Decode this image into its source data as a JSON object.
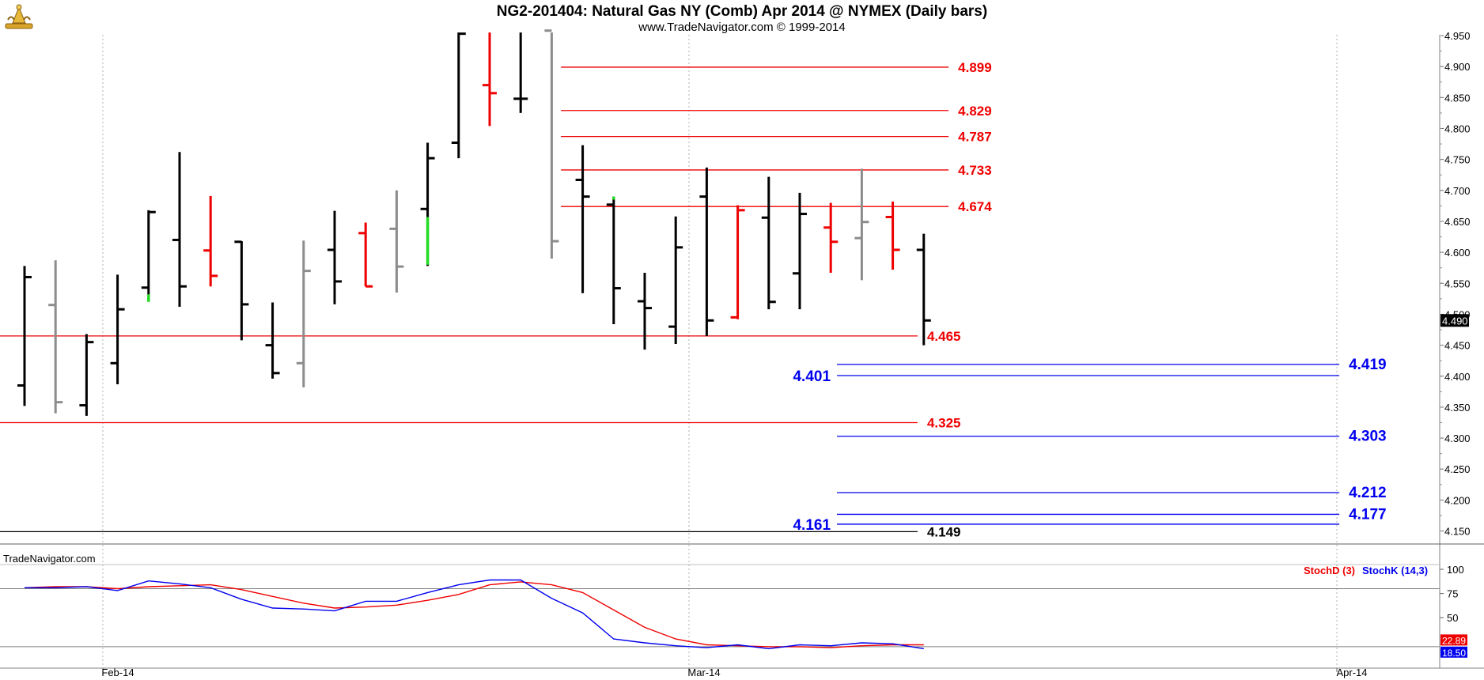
{
  "header": {
    "title": "NG2-201404:  Natural Gas NY (Comb) Apr 2014 @ NYMEX  (Daily bars)",
    "subtitle": "www.TradeNavigator.com © 1999-2014"
  },
  "chart_data": [
    {
      "type": "ohlc",
      "xlabel": "",
      "ylabel": "",
      "ylim": [
        4.13,
        4.955
      ],
      "x_ticks": [
        "Feb-14",
        "Mar-14",
        "Apr-14"
      ],
      "y_ticks": [
        "4.950",
        "4.900",
        "4.850",
        "4.800",
        "4.750",
        "4.700",
        "4.650",
        "4.600",
        "4.550",
        "4.500",
        "4.450",
        "4.400",
        "4.350",
        "4.300",
        "4.250",
        "4.200",
        "4.150"
      ],
      "last_price": "4.490",
      "bar_colors": {
        "black": "#000000",
        "gray": "#8c8c8c",
        "red": "#ee0000",
        "green": "#22dd22"
      },
      "bars": [
        {
          "o": 4.385,
          "h": 4.578,
          "l": 4.352,
          "c": 4.56,
          "color": "black"
        },
        {
          "o": 4.515,
          "h": 4.587,
          "l": 4.34,
          "c": 4.358,
          "color": "gray"
        },
        {
          "o": 4.353,
          "h": 4.468,
          "l": 4.336,
          "c": 4.455,
          "color": "black"
        },
        {
          "o": 4.421,
          "h": 4.564,
          "l": 4.387,
          "c": 4.508,
          "color": "black"
        },
        {
          "o": 4.543,
          "h": 4.668,
          "l": 4.532,
          "c": 4.665,
          "color": "black"
        },
        {
          "o": 4.62,
          "h": 4.762,
          "l": 4.512,
          "c": 4.545,
          "color": "black"
        },
        {
          "o": 4.603,
          "h": 4.691,
          "l": 4.545,
          "c": 4.562,
          "color": "red"
        },
        {
          "o": 4.617,
          "h": 4.618,
          "l": 4.458,
          "c": 4.516,
          "color": "black"
        },
        {
          "o": 4.45,
          "h": 4.519,
          "l": 4.396,
          "c": 4.405,
          "color": "black"
        },
        {
          "o": 4.421,
          "h": 4.619,
          "l": 4.382,
          "c": 4.57,
          "color": "gray"
        },
        {
          "o": 4.604,
          "h": 4.667,
          "l": 4.516,
          "c": 4.553,
          "color": "black"
        },
        {
          "o": 4.631,
          "h": 4.648,
          "l": 4.545,
          "c": 4.545,
          "color": "red"
        },
        {
          "o": 4.638,
          "h": 4.7,
          "l": 4.535,
          "c": 4.577,
          "color": "gray"
        },
        {
          "o": 4.67,
          "h": 4.777,
          "l": 4.578,
          "c": 4.752,
          "color": "black"
        },
        {
          "o": 4.777,
          "h": 4.958,
          "l": 4.752,
          "c": 4.953,
          "color": "black"
        },
        {
          "o": 4.87,
          "h": 4.958,
          "l": 4.804,
          "c": 4.857,
          "color": "red"
        },
        {
          "o": 4.848,
          "h": 4.958,
          "l": 4.825,
          "c": 4.848,
          "color": "black"
        },
        {
          "o": 4.958,
          "h": 4.958,
          "l": 4.59,
          "c": 4.618,
          "color": "gray"
        },
        {
          "o": 4.717,
          "h": 4.773,
          "l": 4.534,
          "c": 4.69,
          "color": "black"
        },
        {
          "o": 4.677,
          "h": 4.69,
          "l": 4.484,
          "c": 4.542,
          "color": "black"
        },
        {
          "o": 4.521,
          "h": 4.567,
          "l": 4.443,
          "c": 4.51,
          "color": "black"
        },
        {
          "o": 4.48,
          "h": 4.658,
          "l": 4.452,
          "c": 4.608,
          "color": "black"
        },
        {
          "o": 4.69,
          "h": 4.737,
          "l": 4.465,
          "c": 4.49,
          "color": "black"
        },
        {
          "o": 4.495,
          "h": 4.676,
          "l": 4.492,
          "c": 4.668,
          "color": "red"
        },
        {
          "o": 4.656,
          "h": 4.722,
          "l": 4.508,
          "c": 4.52,
          "color": "black"
        },
        {
          "o": 4.566,
          "h": 4.696,
          "l": 4.508,
          "c": 4.662,
          "color": "black"
        },
        {
          "o": 4.64,
          "h": 4.68,
          "l": 4.567,
          "c": 4.617,
          "color": "red"
        },
        {
          "o": 4.623,
          "h": 4.735,
          "l": 4.555,
          "c": 4.649,
          "color": "gray"
        },
        {
          "o": 4.657,
          "h": 4.682,
          "l": 4.572,
          "c": 4.604,
          "color": "red"
        },
        {
          "o": 4.604,
          "h": 4.63,
          "l": 4.45,
          "c": 4.49,
          "color": "black"
        }
      ],
      "green_marks": [
        {
          "bar": 4,
          "from": 4.52,
          "to": 4.532
        },
        {
          "bar": 13,
          "from": 4.58,
          "to": 4.657
        },
        {
          "bar": 19,
          "from": 4.685,
          "to": 4.69
        }
      ],
      "levels": [
        {
          "value": 4.899,
          "label": "4.899",
          "color": "#ee0000",
          "from_bar": 17.3,
          "to_bar": 29.8,
          "label_side": "right"
        },
        {
          "value": 4.829,
          "label": "4.829",
          "color": "#ee0000",
          "from_bar": 17.3,
          "to_bar": 29.8,
          "label_side": "right"
        },
        {
          "value": 4.787,
          "label": "4.787",
          "color": "#ee0000",
          "from_bar": 17.3,
          "to_bar": 29.8,
          "label_side": "right"
        },
        {
          "value": 4.733,
          "label": "4.733",
          "color": "#ee0000",
          "from_bar": 17.3,
          "to_bar": 29.8,
          "label_side": "right"
        },
        {
          "value": 4.674,
          "label": "4.674",
          "color": "#ee0000",
          "from_bar": 17.3,
          "to_bar": 29.8,
          "label_side": "right"
        },
        {
          "value": 4.465,
          "label": "4.465",
          "color": "#ee0000",
          "from_bar": -1,
          "to_bar": 28.8,
          "label_side": "right"
        },
        {
          "value": 4.325,
          "label": "4.325",
          "color": "#ee0000",
          "from_bar": -1,
          "to_bar": 28.8,
          "label_side": "right"
        },
        {
          "value": 4.149,
          "label": "4.149",
          "color": "#000000",
          "from_bar": -1,
          "to_bar": 28.8,
          "label_side": "right"
        },
        {
          "value": 4.419,
          "label": "4.419",
          "color": "#0000ee",
          "from_bar": 26.2,
          "to_bar": 42.4,
          "label_side": "right"
        },
        {
          "value": 4.401,
          "label": "4.401",
          "color": "#0000ee",
          "from_bar": 26.2,
          "to_bar": 42.4,
          "label_side": "left"
        },
        {
          "value": 4.303,
          "label": "4.303",
          "color": "#0000ee",
          "from_bar": 26.2,
          "to_bar": 42.4,
          "label_side": "right"
        },
        {
          "value": 4.212,
          "label": "4.212",
          "color": "#0000ee",
          "from_bar": 26.2,
          "to_bar": 42.4,
          "label_side": "right"
        },
        {
          "value": 4.177,
          "label": "4.177",
          "color": "#0000ee",
          "from_bar": 26.2,
          "to_bar": 42.4,
          "label_side": "right"
        },
        {
          "value": 4.161,
          "label": "4.161",
          "color": "#0000ee",
          "from_bar": 26.2,
          "to_bar": 42.4,
          "label_side": "left"
        }
      ]
    },
    {
      "type": "line",
      "watermark": "TradeNavigator.com",
      "ylim": [
        0,
        100
      ],
      "y_ticks": [
        "100",
        "75",
        "50"
      ],
      "ref_lines": [
        80,
        20
      ],
      "last_values": {
        "stochD": "22.89",
        "stochK": "18.50"
      },
      "series": [
        {
          "name": "StochD (3)",
          "color": "#ee0000",
          "values": [
            81,
            82,
            82,
            80,
            82,
            83,
            84,
            79,
            72,
            65,
            60,
            61,
            63,
            68,
            74,
            84,
            87,
            84,
            76,
            58,
            40,
            28,
            22,
            21,
            20,
            20,
            19,
            21,
            22,
            22
          ]
        },
        {
          "name": "StochK (14,3)",
          "color": "#0000ee",
          "values": [
            81,
            81,
            82,
            78,
            88,
            85,
            81,
            69,
            60,
            59,
            57,
            67,
            67,
            76,
            84,
            89,
            89,
            70,
            55,
            28,
            24,
            21,
            19,
            22,
            18,
            22,
            21,
            24,
            23,
            18
          ]
        }
      ]
    }
  ]
}
